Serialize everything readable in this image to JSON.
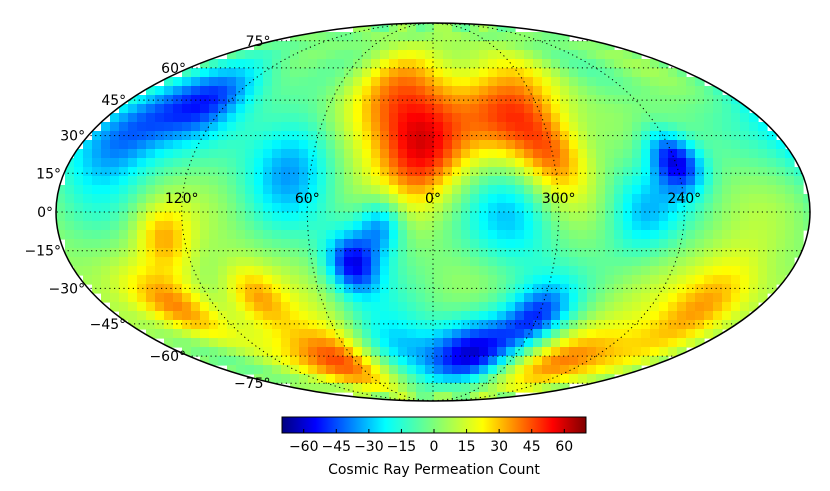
{
  "chart_data": {
    "type": "heatmap",
    "projection": "mollweide",
    "colormap": "jet",
    "colorbar": {
      "label": "Cosmic Ray Permeation Count",
      "range": [
        -70,
        70
      ],
      "ticks": [
        "−60",
        "−45",
        "−30",
        "−15",
        "0",
        "15",
        "30",
        "45",
        "60"
      ],
      "tick_values": [
        -60,
        -45,
        -30,
        -15,
        0,
        15,
        30,
        45,
        60
      ]
    },
    "latitude_labels": [
      {
        "value": 75,
        "text": "75°"
      },
      {
        "value": 60,
        "text": "60°"
      },
      {
        "value": 45,
        "text": "45°"
      },
      {
        "value": 30,
        "text": "30°"
      },
      {
        "value": 15,
        "text": "15°"
      },
      {
        "value": 0,
        "text": "0°"
      },
      {
        "value": -15,
        "text": "−15°"
      },
      {
        "value": -30,
        "text": "−30°"
      },
      {
        "value": -45,
        "text": "−45°"
      },
      {
        "value": -60,
        "text": "−60°"
      },
      {
        "value": -75,
        "text": "−75°"
      }
    ],
    "longitude_labels": [
      {
        "value": 120,
        "text": "120°"
      },
      {
        "value": 60,
        "text": "60°"
      },
      {
        "value": 0,
        "text": "0°"
      },
      {
        "value": 300,
        "text": "300°"
      },
      {
        "value": 240,
        "text": "240°"
      }
    ],
    "grid": true,
    "hotspots": [
      {
        "lon": 20,
        "lat": 40,
        "value": 42,
        "spread": 18
      },
      {
        "lon": 5,
        "lat": 22,
        "value": 38,
        "spread": 14
      },
      {
        "lon": 315,
        "lat": 40,
        "value": 44,
        "spread": 16
      },
      {
        "lon": 300,
        "lat": 20,
        "value": 35,
        "spread": 12
      },
      {
        "lon": 65,
        "lat": -62,
        "value": 65,
        "spread": 12
      },
      {
        "lon": 95,
        "lat": -33,
        "value": 35,
        "spread": 10
      },
      {
        "lon": 140,
        "lat": -38,
        "value": 35,
        "spread": 12
      },
      {
        "lon": 210,
        "lat": -35,
        "value": 40,
        "spread": 14
      },
      {
        "lon": 255,
        "lat": -62,
        "value": 45,
        "spread": 12
      },
      {
        "lon": 130,
        "lat": -10,
        "value": 30,
        "spread": 10
      },
      {
        "lon": 160,
        "lat": 30,
        "value": -48,
        "spread": 15
      },
      {
        "lon": 70,
        "lat": 20,
        "value": -38,
        "spread": 15
      },
      {
        "lon": 240,
        "lat": 20,
        "value": -60,
        "spread": 9
      },
      {
        "lon": 130,
        "lat": 45,
        "value": -42,
        "spread": 12
      },
      {
        "lon": 40,
        "lat": -20,
        "value": -55,
        "spread": 9
      },
      {
        "lon": 25,
        "lat": -5,
        "value": -40,
        "spread": 8
      },
      {
        "lon": 30,
        "lat": -58,
        "value": -48,
        "spread": 12
      },
      {
        "lon": 330,
        "lat": -58,
        "value": -50,
        "spread": 12
      },
      {
        "lon": 300,
        "lat": -42,
        "value": -42,
        "spread": 10
      },
      {
        "lon": 320,
        "lat": 0,
        "value": -28,
        "spread": 16
      },
      {
        "lon": 260,
        "lat": 0,
        "value": -25,
        "spread": 12
      }
    ]
  }
}
